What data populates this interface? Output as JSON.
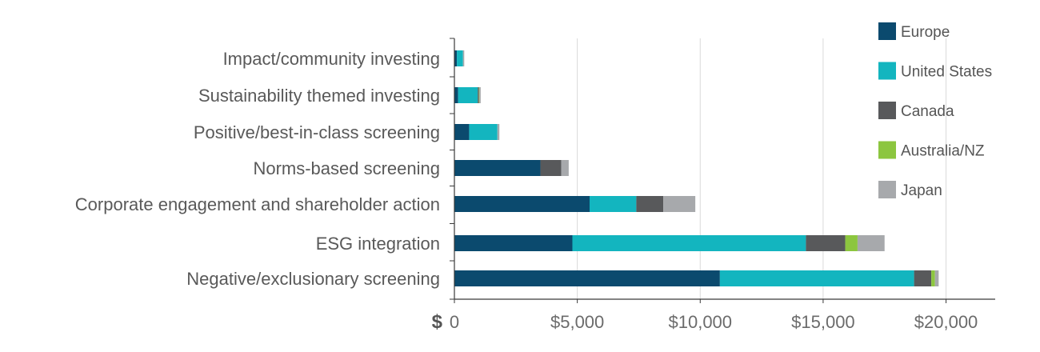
{
  "chart_data": {
    "type": "bar",
    "orientation": "horizontal",
    "stacked": true,
    "title": "",
    "xlabel": "",
    "ylabel": "",
    "currency_symbol": "$",
    "categories": [
      "Impact/community investing",
      "Sustainability themed investing",
      "Positive/best-in-class screening",
      "Norms-based screening",
      "Corporate engagement and shareholder action",
      "ESG integration",
      "Negative/exclusionary screening"
    ],
    "series": [
      {
        "name": "Europe",
        "color": "#0b4a6e",
        "values": [
          100,
          150,
          600,
          3500,
          5500,
          4800,
          10800
        ]
      },
      {
        "name": "United States",
        "color": "#13b5bf",
        "values": [
          250,
          800,
          1150,
          0,
          1900,
          9500,
          7900
        ]
      },
      {
        "name": "Canada",
        "color": "#58595b",
        "values": [
          0,
          50,
          0,
          850,
          1100,
          1600,
          700
        ]
      },
      {
        "name": "Australia/NZ",
        "color": "#8cc63f",
        "values": [
          0,
          20,
          0,
          0,
          0,
          500,
          150
        ]
      },
      {
        "name": "Japan",
        "color": "#a7a9ac",
        "values": [
          50,
          50,
          80,
          300,
          1300,
          1100,
          150
        ]
      }
    ],
    "xlim": [
      0,
      22000
    ],
    "xticks": [
      0,
      5000,
      10000,
      15000,
      20000
    ],
    "xtick_labels": [
      "0",
      "$5,000",
      "$10,000",
      "$15,000",
      "$20,000"
    ],
    "grid": true,
    "legend_position": "right"
  }
}
